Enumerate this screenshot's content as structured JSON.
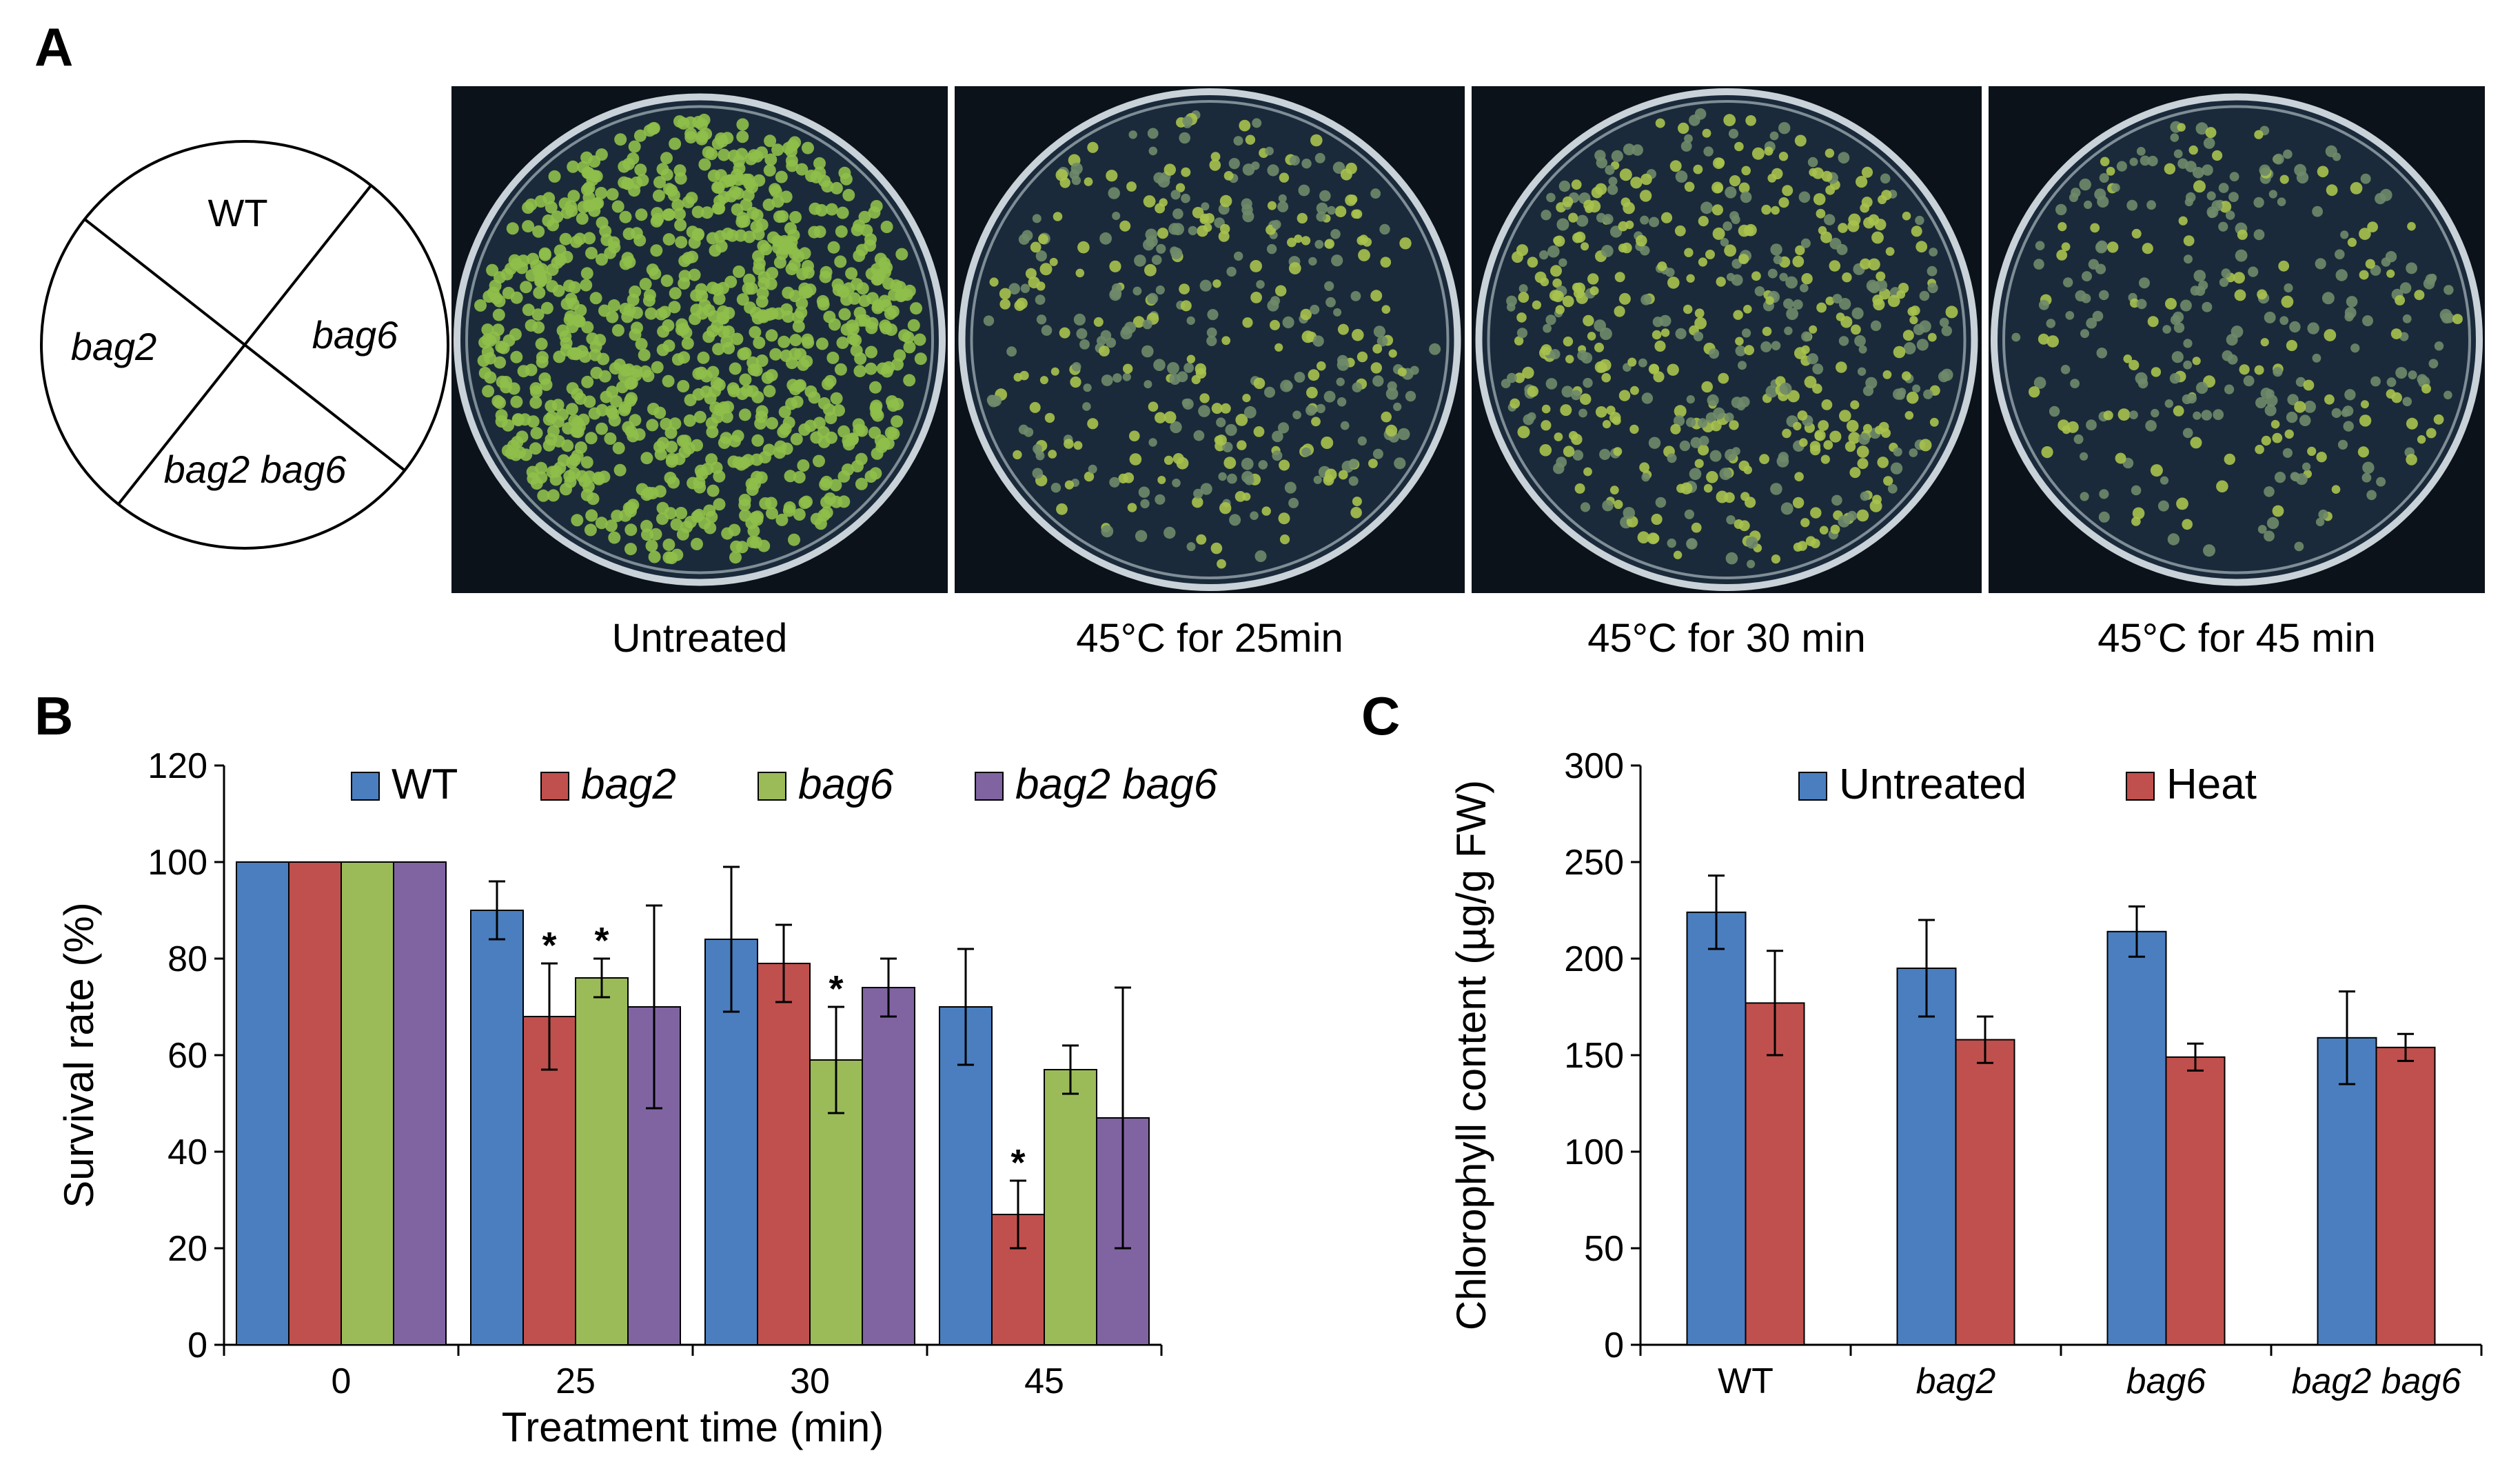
{
  "panels": {
    "a": {
      "letter": "A",
      "diagram": {
        "sectors": [
          {
            "label": "WT",
            "italic": false
          },
          {
            "label": "bag6",
            "italic": true
          },
          {
            "label": "bag2 bag6",
            "italic": true
          },
          {
            "label": "bag2",
            "italic": true
          }
        ]
      },
      "photos": [
        {
          "caption": "Untreated",
          "density": 1.0
        },
        {
          "caption": "45°C for 25min",
          "density": 0.45
        },
        {
          "caption": "45°C for 30 min",
          "density": 0.6
        },
        {
          "caption": "45°C for 45 min",
          "density": 0.35
        }
      ]
    },
    "b": {
      "letter": "B"
    },
    "c": {
      "letter": "C"
    }
  },
  "colors": {
    "wt": "#4a7ebf",
    "bag2": "#c0504d",
    "bag6": "#9bbb59",
    "bag2bag6": "#8064a2",
    "untreated": "#4a7ebf",
    "heat": "#c0504d",
    "photo_bg": "#0c1219",
    "seedling": "#8fbf4a"
  },
  "chart_data": [
    {
      "type": "bar",
      "categories": [
        "0",
        "25",
        "30",
        "45"
      ],
      "series": [
        {
          "name": "WT",
          "italic": false,
          "color": "#4a7ebf",
          "values": [
            100,
            90,
            84,
            70
          ],
          "errors": [
            0,
            6,
            15,
            12
          ]
        },
        {
          "name": "bag2",
          "italic": true,
          "color": "#c0504d",
          "values": [
            100,
            68,
            79,
            27
          ],
          "errors": [
            0,
            11,
            8,
            7
          ]
        },
        {
          "name": "bag6",
          "italic": true,
          "color": "#9bbb59",
          "values": [
            100,
            76,
            59,
            57
          ],
          "errors": [
            0,
            4,
            11,
            5
          ]
        },
        {
          "name": "bag2 bag6",
          "italic": true,
          "color": "#8064a2",
          "values": [
            100,
            70,
            74,
            47
          ],
          "errors": [
            0,
            21,
            6,
            27
          ]
        }
      ],
      "significance": [
        {
          "series": 1,
          "category": 1,
          "mark": "*"
        },
        {
          "series": 2,
          "category": 1,
          "mark": "*"
        },
        {
          "series": 2,
          "category": 2,
          "mark": "*"
        },
        {
          "series": 1,
          "category": 3,
          "mark": "*"
        }
      ],
      "ylim": [
        0,
        120
      ],
      "yticks": [
        0,
        20,
        40,
        60,
        80,
        100,
        120
      ],
      "xlabel": "Treatment time (min)",
      "ylabel": "Survival rate (%)",
      "legend": "top"
    },
    {
      "type": "bar",
      "categories": [
        "WT",
        "bag2",
        "bag6",
        "bag2 bag6"
      ],
      "categories_italic": [
        false,
        true,
        true,
        true
      ],
      "series": [
        {
          "name": "Untreated",
          "color": "#4a7ebf",
          "values": [
            224,
            195,
            214,
            159
          ],
          "errors": [
            19,
            25,
            13,
            24
          ]
        },
        {
          "name": "Heat",
          "color": "#c0504d",
          "values": [
            177,
            158,
            149,
            154
          ],
          "errors": [
            27,
            12,
            7,
            7
          ]
        }
      ],
      "ylim": [
        0,
        300
      ],
      "yticks": [
        0,
        50,
        100,
        150,
        200,
        250,
        300
      ],
      "ylabel": "Chlorophyll content (µg/g FW)",
      "legend": "top"
    }
  ]
}
